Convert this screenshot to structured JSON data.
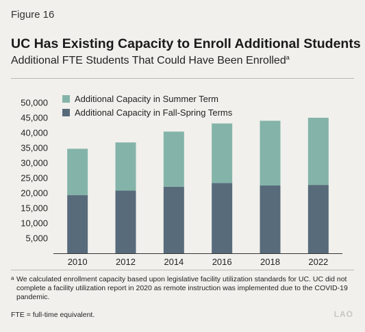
{
  "figure_label": "Figure 16",
  "title": "UC Has Existing Capacity to Enroll Additional Students",
  "subtitle": "Additional FTE Students That Could Have Been Enrolled",
  "subtitle_marker": "a",
  "footnote_marker": "a",
  "footnote_text": "We calculated enrollment capacity based upon legislative facility utilization standards for UC. UC did not complete a facility utilization report in 2020 as remote instruction was implemented due to the COVID-19 pandemic.",
  "fte_note": "FTE = full-time equivalent.",
  "logo_text": "LAO",
  "colors": {
    "summer": "#84b4a9",
    "fall_spring": "#586b7b",
    "background": "#f1f0ec"
  },
  "chart_data": {
    "type": "bar",
    "stacked": true,
    "categories": [
      "2010",
      "2012",
      "2014",
      "2016",
      "2018",
      "2022"
    ],
    "series": [
      {
        "name": "Additional Capacity in Fall-Spring Terms",
        "values": [
          19300,
          20800,
          22100,
          23300,
          22500,
          22700
        ],
        "color": "#586b7b"
      },
      {
        "name": "Additional Capacity in Summer Term",
        "values": [
          15400,
          16000,
          18300,
          19800,
          21500,
          22300
        ],
        "color": "#84b4a9"
      }
    ],
    "ylim": [
      0,
      50000
    ],
    "yticks": [
      5000,
      10000,
      15000,
      20000,
      25000,
      30000,
      35000,
      40000,
      45000,
      50000
    ],
    "ytick_labels": [
      "5,000",
      "10,000",
      "15,000",
      "20,000",
      "25,000",
      "30,000",
      "35,000",
      "40,000",
      "45,000",
      "50,000"
    ],
    "grid": false,
    "legend_position": "top-left",
    "legend_order": [
      "Additional Capacity in Summer Term",
      "Additional Capacity in Fall-Spring Terms"
    ]
  }
}
